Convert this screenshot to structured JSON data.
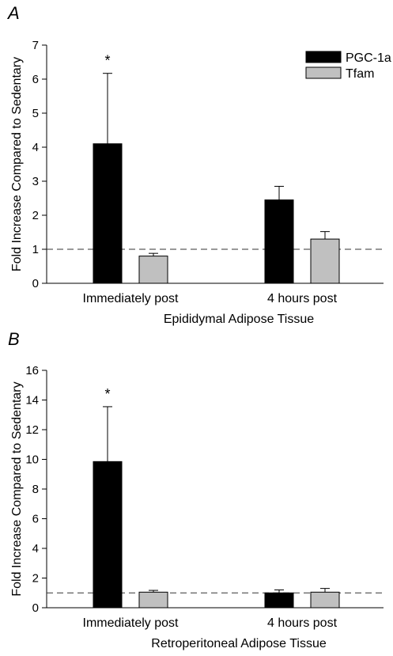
{
  "chart_data": [
    {
      "type": "bar",
      "panel": "A",
      "xlabel": "Epididymal Adipose Tissue",
      "ylabel": "Fold Increase Compared to Sedentary",
      "ylim": [
        0,
        7
      ],
      "yticks": [
        "0",
        "1",
        "2",
        "3",
        "4",
        "5",
        "6",
        "7"
      ],
      "categories": [
        "Immediately post",
        "4 hours post"
      ],
      "series": [
        {
          "name": "PGC-1a",
          "color": "#000000",
          "values": [
            4.1,
            2.45
          ],
          "errors": [
            2.07,
            0.4
          ]
        },
        {
          "name": "Tfam",
          "color": "#c0c0c0",
          "values": [
            0.8,
            1.3
          ],
          "errors": [
            0.08,
            0.22
          ]
        }
      ],
      "reference_line": 1,
      "significance": [
        {
          "category": "Immediately post",
          "series": "PGC-1a",
          "mark": "*"
        }
      ],
      "legend": {
        "position": "top-right"
      },
      "grid": false
    },
    {
      "type": "bar",
      "panel": "B",
      "xlabel": "Retroperitoneal Adipose Tissue",
      "ylabel": "Fold Increase Compared to Sedentary",
      "ylim": [
        0,
        16
      ],
      "yticks": [
        "0",
        "2",
        "4",
        "6",
        "8",
        "10",
        "12",
        "14",
        "16"
      ],
      "categories": [
        "Immediately post",
        "4 hours post"
      ],
      "series": [
        {
          "name": "PGC-1a",
          "color": "#000000",
          "values": [
            9.85,
            1.0
          ],
          "errors": [
            3.7,
            0.2
          ]
        },
        {
          "name": "Tfam",
          "color": "#c0c0c0",
          "values": [
            1.05,
            1.05
          ],
          "errors": [
            0.12,
            0.25
          ]
        }
      ],
      "reference_line": 1,
      "significance": [
        {
          "category": "Immediately post",
          "series": "PGC-1a",
          "mark": "*"
        }
      ],
      "legend": {
        "position": "none"
      },
      "grid": false
    }
  ]
}
